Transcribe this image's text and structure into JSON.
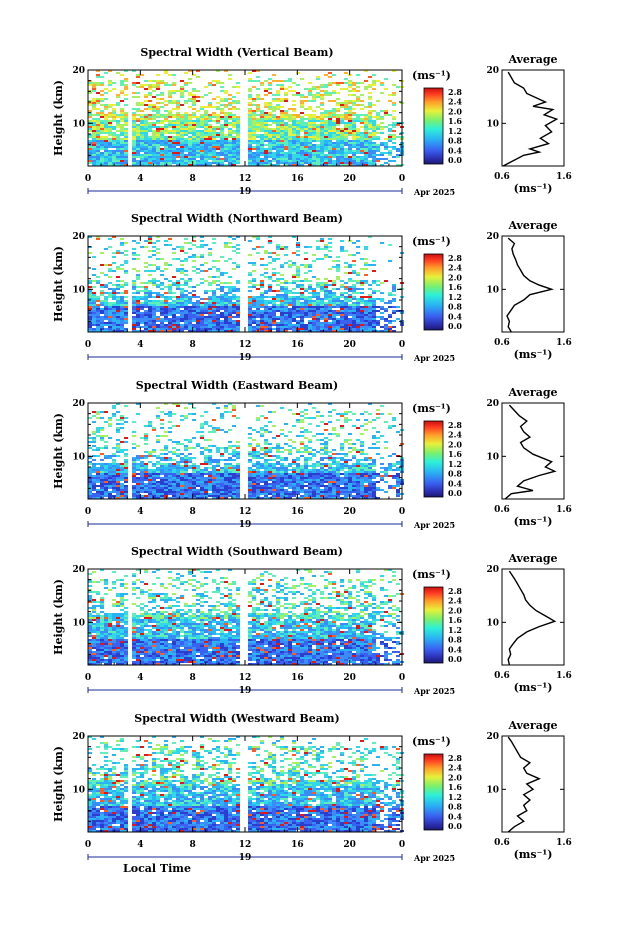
{
  "chart_data": [
    {
      "type": "heatmap",
      "title": "Spectral Width (Vertical Beam)",
      "ylabel": "Height (km)",
      "yticks": [
        "20",
        "10"
      ],
      "xticks": [
        "0",
        "4",
        "8",
        "12",
        "16",
        "20",
        "0"
      ],
      "date_day": "19",
      "date_month": "Apr 2025",
      "colorbar_unit": "(ms⁻¹)",
      "colorbar_ticks": [
        "2.8",
        "2.4",
        "2.0",
        "1.6",
        "1.2",
        "0.8",
        "0.4",
        "0.0"
      ],
      "profile": {
        "title": "Average",
        "xticks": [
          "0.6",
          "1.6"
        ],
        "xlabel": "(ms⁻¹)",
        "yticks": [
          "20",
          "10"
        ],
        "xlim": [
          0.6,
          1.6
        ],
        "ylim": [
          2,
          20
        ],
        "points": [
          [
            0.62,
            2.0
          ],
          [
            0.78,
            3.0
          ],
          [
            0.95,
            4.0
          ],
          [
            1.2,
            4.6
          ],
          [
            1.05,
            5.2
          ],
          [
            1.35,
            6.2
          ],
          [
            1.22,
            7.2
          ],
          [
            1.4,
            8.4
          ],
          [
            1.3,
            9.6
          ],
          [
            1.48,
            10.8
          ],
          [
            1.28,
            11.6
          ],
          [
            1.42,
            12.6
          ],
          [
            1.1,
            13.2
          ],
          [
            1.3,
            14.0
          ],
          [
            1.15,
            14.8
          ],
          [
            1.0,
            15.6
          ],
          [
            0.95,
            16.6
          ],
          [
            0.8,
            17.6
          ],
          [
            0.75,
            18.6
          ],
          [
            0.7,
            19.6
          ]
        ]
      }
    },
    {
      "type": "heatmap",
      "title": "Spectral Width (Northward Beam)",
      "ylabel": "Height (km)",
      "yticks": [
        "20",
        "10"
      ],
      "xticks": [
        "0",
        "4",
        "8",
        "12",
        "16",
        "20",
        "0"
      ],
      "date_day": "19",
      "date_month": "Apr 2025",
      "colorbar_unit": "(ms⁻¹)",
      "colorbar_ticks": [
        "2.8",
        "2.4",
        "2.0",
        "1.6",
        "1.2",
        "0.8",
        "0.4",
        "0.0"
      ],
      "profile": {
        "title": "Average",
        "xticks": [
          "0.6",
          "1.6"
        ],
        "xlabel": "(ms⁻¹)",
        "yticks": [
          "20",
          "10"
        ],
        "xlim": [
          0.6,
          1.6
        ],
        "ylim": [
          2,
          20
        ],
        "points": [
          [
            0.75,
            2.0
          ],
          [
            0.7,
            3.0
          ],
          [
            0.72,
            4.0
          ],
          [
            0.68,
            5.0
          ],
          [
            0.74,
            6.0
          ],
          [
            0.8,
            7.0
          ],
          [
            0.95,
            8.0
          ],
          [
            1.05,
            9.0
          ],
          [
            1.4,
            10.0
          ],
          [
            1.2,
            10.8
          ],
          [
            1.05,
            11.6
          ],
          [
            0.95,
            12.6
          ],
          [
            0.9,
            13.6
          ],
          [
            0.85,
            14.6
          ],
          [
            0.82,
            15.6
          ],
          [
            0.78,
            16.6
          ],
          [
            0.76,
            17.6
          ],
          [
            0.8,
            18.6
          ],
          [
            0.7,
            19.6
          ]
        ]
      }
    },
    {
      "type": "heatmap",
      "title": "Spectral Width (Eastward Beam)",
      "ylabel": "Height (km)",
      "yticks": [
        "20",
        "10"
      ],
      "xticks": [
        "0",
        "4",
        "8",
        "12",
        "16",
        "20",
        "0"
      ],
      "date_day": "19",
      "date_month": "Apr 2025",
      "colorbar_unit": "(ms⁻¹)",
      "colorbar_ticks": [
        "2.8",
        "2.4",
        "2.0",
        "1.6",
        "1.2",
        "0.8",
        "0.4",
        "0.0"
      ],
      "profile": {
        "title": "Average",
        "xticks": [
          "0.6",
          "1.6"
        ],
        "xlabel": "(ms⁻¹)",
        "yticks": [
          "20",
          "10"
        ],
        "xlim": [
          0.6,
          1.6
        ],
        "ylim": [
          2,
          20
        ],
        "points": [
          [
            0.65,
            2.0
          ],
          [
            0.75,
            3.0
          ],
          [
            1.1,
            3.6
          ],
          [
            0.85,
            4.4
          ],
          [
            0.95,
            5.4
          ],
          [
            1.2,
            6.4
          ],
          [
            1.45,
            7.2
          ],
          [
            1.3,
            8.0
          ],
          [
            1.4,
            9.0
          ],
          [
            1.1,
            10.4
          ],
          [
            0.95,
            11.6
          ],
          [
            0.9,
            12.6
          ],
          [
            1.05,
            13.6
          ],
          [
            0.95,
            14.6
          ],
          [
            0.9,
            15.6
          ],
          [
            1.0,
            16.6
          ],
          [
            0.88,
            17.6
          ],
          [
            0.8,
            18.6
          ],
          [
            0.72,
            19.6
          ]
        ]
      }
    },
    {
      "type": "heatmap",
      "title": "Spectral Width (Southward Beam)",
      "ylabel": "Height (km)",
      "yticks": [
        "20",
        "10"
      ],
      "xticks": [
        "0",
        "4",
        "8",
        "12",
        "16",
        "20",
        "0"
      ],
      "date_day": "19",
      "date_month": "Apr 2025",
      "colorbar_unit": "(ms⁻¹)",
      "colorbar_ticks": [
        "2.8",
        "2.4",
        "2.0",
        "1.6",
        "1.2",
        "0.8",
        "0.4",
        "0.0"
      ],
      "profile": {
        "title": "Average",
        "xticks": [
          "0.6",
          "1.6"
        ],
        "xlabel": "(ms⁻¹)",
        "yticks": [
          "20",
          "10"
        ],
        "xlim": [
          0.6,
          1.6
        ],
        "ylim": [
          2,
          20
        ],
        "points": [
          [
            0.72,
            2.0
          ],
          [
            0.7,
            3.0
          ],
          [
            0.74,
            4.0
          ],
          [
            0.72,
            5.0
          ],
          [
            0.78,
            6.0
          ],
          [
            0.85,
            7.0
          ],
          [
            1.0,
            8.2
          ],
          [
            1.2,
            9.2
          ],
          [
            1.45,
            10.2
          ],
          [
            1.3,
            11.2
          ],
          [
            1.15,
            12.2
          ],
          [
            1.05,
            13.2
          ],
          [
            0.98,
            14.2
          ],
          [
            0.95,
            15.2
          ],
          [
            0.9,
            16.2
          ],
          [
            0.85,
            17.2
          ],
          [
            0.8,
            18.2
          ],
          [
            0.72,
            19.6
          ]
        ]
      }
    },
    {
      "type": "heatmap",
      "title": "Spectral Width (Westward Beam)",
      "ylabel": "Height (km)",
      "yticks": [
        "20",
        "10"
      ],
      "xticks": [
        "0",
        "4",
        "8",
        "12",
        "16",
        "20",
        "0"
      ],
      "date_day": "19",
      "date_month": "Apr 2025",
      "colorbar_unit": "(ms⁻¹)",
      "colorbar_ticks": [
        "2.8",
        "2.4",
        "2.0",
        "1.6",
        "1.2",
        "0.8",
        "0.4",
        "0.0"
      ],
      "xlabel": "Local Time",
      "profile": {
        "title": "Average",
        "xticks": [
          "0.6",
          "1.6"
        ],
        "xlabel": "(ms⁻¹)",
        "yticks": [
          "20",
          "10"
        ],
        "xlim": [
          0.6,
          1.6
        ],
        "ylim": [
          2,
          20
        ],
        "points": [
          [
            0.7,
            2.0
          ],
          [
            0.8,
            3.0
          ],
          [
            0.95,
            4.0
          ],
          [
            0.85,
            5.0
          ],
          [
            1.0,
            6.0
          ],
          [
            0.95,
            7.0
          ],
          [
            1.05,
            8.0
          ],
          [
            0.95,
            9.0
          ],
          [
            1.1,
            10.0
          ],
          [
            1.0,
            11.0
          ],
          [
            1.2,
            12.0
          ],
          [
            1.0,
            13.0
          ],
          [
            0.95,
            14.0
          ],
          [
            1.05,
            15.0
          ],
          [
            0.9,
            16.0
          ],
          [
            0.85,
            17.0
          ],
          [
            0.8,
            18.0
          ],
          [
            0.75,
            19.0
          ],
          [
            0.7,
            19.8
          ]
        ]
      }
    }
  ]
}
